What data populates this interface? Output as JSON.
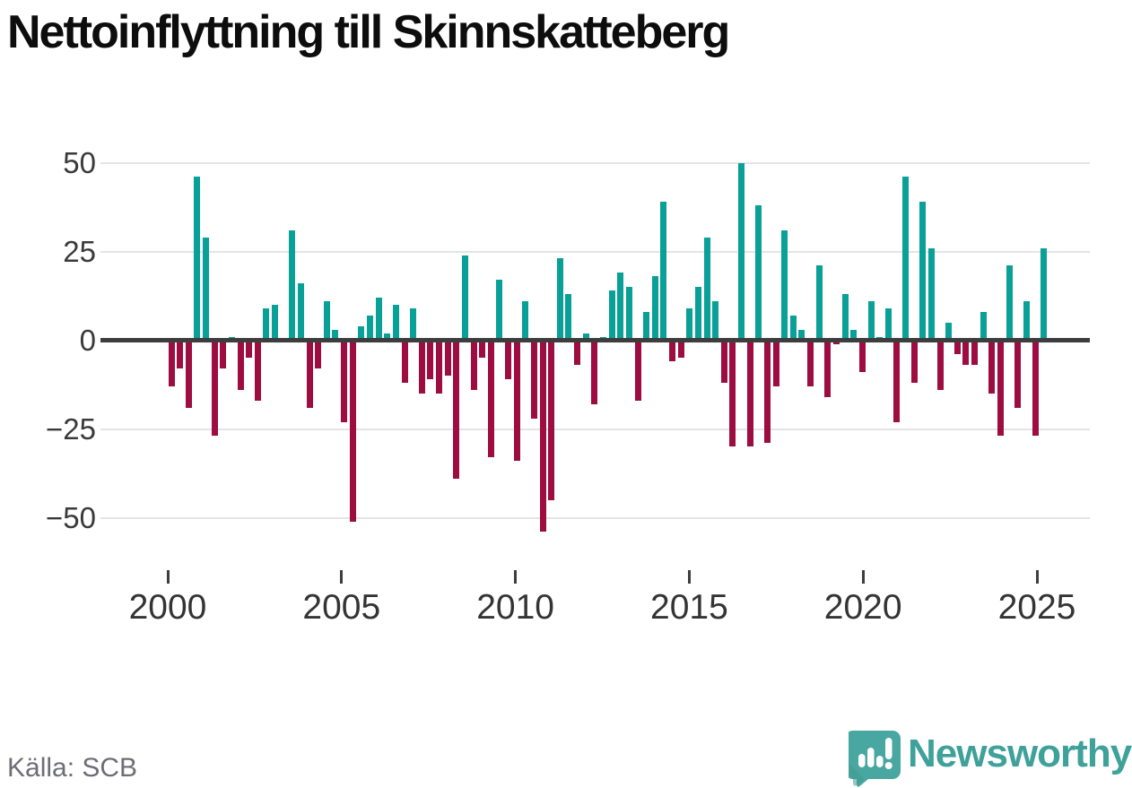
{
  "title": "Nettoinflyttning till Skinnskatteberg",
  "source_note": "Källa: SCB",
  "brand": {
    "wordmark": "Newsworthy",
    "logo_icon": "newsworthy-speech-bubble-bar-chart-icon",
    "color": "#3ea19a"
  },
  "colors": {
    "positive_bar": "#09a098",
    "negative_bar": "#9d0d40",
    "gridline": "#e4e4e4",
    "zero_axis": "#3d3d3d",
    "axis_text": "#3a3a3a",
    "muted_text": "#6d6d77"
  },
  "chart_data": {
    "type": "bar",
    "title": "Nettoinflyttning till Skinnskatteberg",
    "x_unit": "quarter",
    "start_period": "2000Q1",
    "end_period": "2025Q2",
    "y_ticks": [
      50,
      25,
      0,
      -25,
      -50
    ],
    "y_tick_labels": [
      "50",
      "25",
      "0",
      "−25",
      "−50"
    ],
    "x_tick_years": [
      2000,
      2005,
      2010,
      2015,
      2020,
      2025
    ],
    "ylim": [
      -57,
      53
    ],
    "grid": true,
    "legend": "none",
    "positive_color": "#09a098",
    "negative_color": "#9d0d40",
    "values": [
      -13,
      -8,
      -19,
      46,
      29,
      -27,
      -8,
      1,
      -14,
      -5,
      -17,
      9,
      10,
      0,
      31,
      16,
      -19,
      -8,
      11,
      3,
      -23,
      -51,
      4,
      7,
      12,
      2,
      10,
      -12,
      9,
      -15,
      -11,
      -15,
      -10,
      -39,
      24,
      -14,
      -5,
      -33,
      17,
      -11,
      -34,
      11,
      -22,
      -54,
      -45,
      23,
      13,
      -7,
      2,
      -18,
      1,
      14,
      19,
      15,
      -17,
      8,
      18,
      39,
      -6,
      -5,
      9,
      15,
      29,
      11,
      -12,
      -30,
      50,
      -30,
      38,
      -29,
      -13,
      31,
      7,
      3,
      -13,
      21,
      -16,
      -1,
      13,
      3,
      -9,
      11,
      1,
      9,
      -23,
      46,
      -12,
      39,
      26,
      -14,
      5,
      -4,
      -7,
      -7,
      8,
      -15,
      -27,
      21,
      -19,
      11,
      -27,
      26
    ]
  }
}
